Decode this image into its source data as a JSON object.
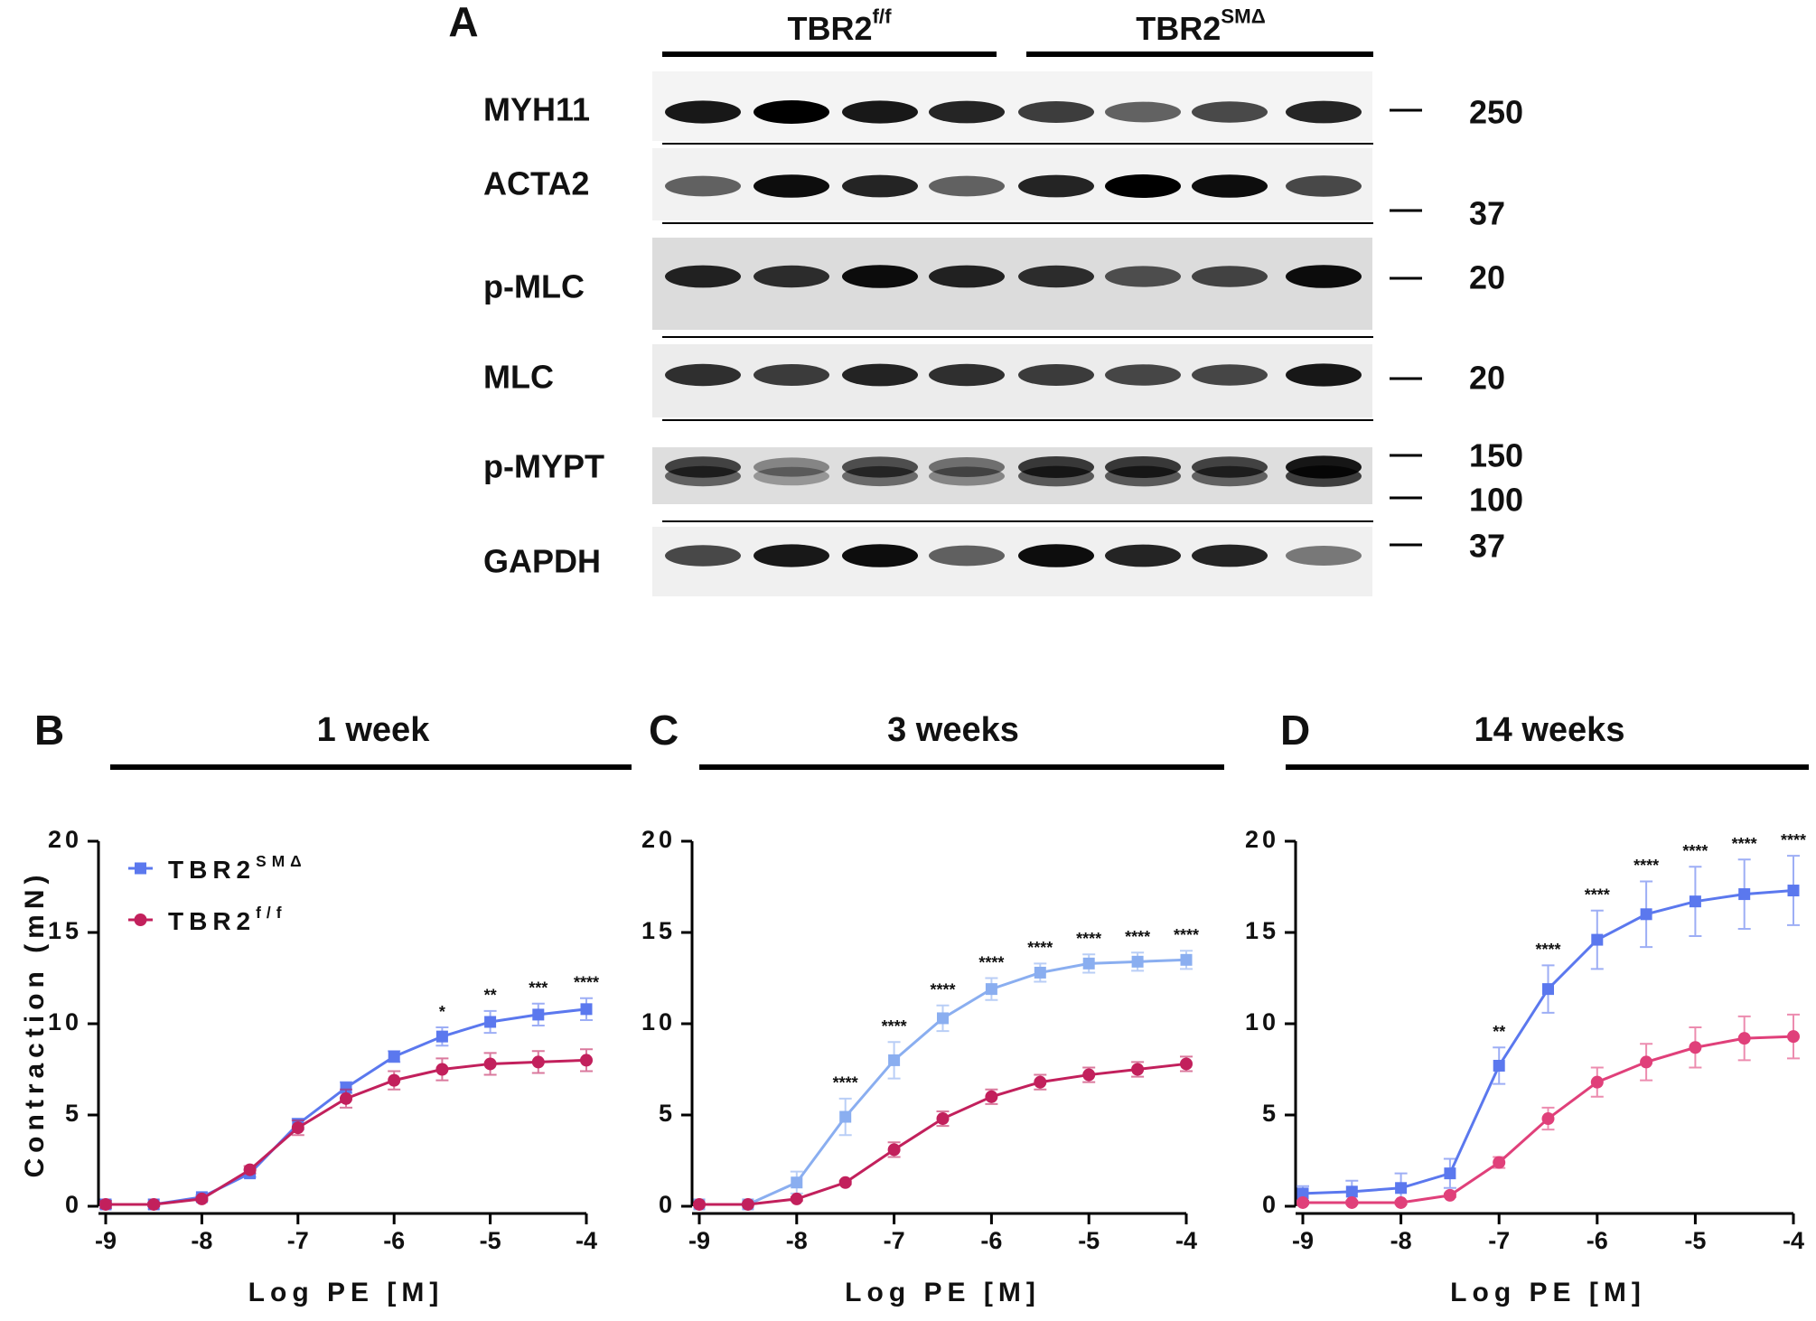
{
  "blot": {
    "panel_label": "A",
    "groups": [
      {
        "name": "TBR2",
        "sup": "f/f"
      },
      {
        "name": "TBR2",
        "sup": "SMΔ"
      }
    ],
    "rows": [
      "MYH11",
      "ACTA2",
      "p-MLC",
      "MLC",
      "p-MYPT",
      "GAPDH"
    ],
    "markers": [
      "250",
      "37",
      "20",
      "20",
      "150",
      "100",
      "37"
    ]
  },
  "chart_data": [
    {
      "type": "line",
      "panel_label": "B",
      "title": "1 week",
      "xlabel": "Log PE [M]",
      "ylabel": "Contraction (mN)",
      "x": [
        -9,
        -8.5,
        -8,
        -7.5,
        -7,
        -6.5,
        -6,
        -5.5,
        -5,
        -4.5,
        -4
      ],
      "xlim": [
        -9,
        -4
      ],
      "xticks": [
        -9,
        -8,
        -7,
        -6,
        -5,
        -4
      ],
      "ylim": [
        0,
        20
      ],
      "yticks": [
        0,
        5,
        10,
        15,
        20
      ],
      "legend": "upper left",
      "series": [
        {
          "name": "TBR2",
          "name_sup": "SMΔ",
          "color": "#5b78ee",
          "marker": "square",
          "values": [
            0.1,
            0.1,
            0.5,
            1.8,
            4.5,
            6.5,
            8.2,
            9.3,
            10.1,
            10.5,
            10.8
          ],
          "errors": [
            0.1,
            0.1,
            0.1,
            0.2,
            0.3,
            0.3,
            0.3,
            0.5,
            0.6,
            0.6,
            0.6
          ]
        },
        {
          "name": "TBR2",
          "name_sup": "f/f",
          "color": "#c2205c",
          "marker": "circle",
          "values": [
            0.1,
            0.1,
            0.4,
            2.0,
            4.3,
            5.9,
            6.9,
            7.5,
            7.8,
            7.9,
            8.0
          ],
          "errors": [
            0.2,
            0.1,
            0.1,
            0.2,
            0.4,
            0.5,
            0.5,
            0.6,
            0.6,
            0.6,
            0.6
          ]
        }
      ],
      "annotations": [
        {
          "x": -5.5,
          "text": "*"
        },
        {
          "x": -5,
          "text": "**"
        },
        {
          "x": -4.5,
          "text": "***"
        },
        {
          "x": -4,
          "text": "****"
        }
      ]
    },
    {
      "type": "line",
      "panel_label": "C",
      "title": "3 weeks",
      "xlabel": "Log PE [M]",
      "x": [
        -9,
        -8.5,
        -8,
        -7.5,
        -7,
        -6.5,
        -6,
        -5.5,
        -5,
        -4.5,
        -4
      ],
      "xlim": [
        -9,
        -4
      ],
      "xticks": [
        -9,
        -8,
        -7,
        -6,
        -5,
        -4
      ],
      "ylim": [
        0,
        20
      ],
      "yticks": [
        0,
        5,
        10,
        15,
        20
      ],
      "series": [
        {
          "color": "#8aaef0",
          "marker": "square",
          "values": [
            0.1,
            0.1,
            1.3,
            4.9,
            8.0,
            10.3,
            11.9,
            12.8,
            13.3,
            13.4,
            13.5
          ],
          "errors": [
            0.0,
            0.0,
            0.6,
            1.0,
            1.0,
            0.7,
            0.6,
            0.5,
            0.5,
            0.5,
            0.5
          ]
        },
        {
          "color": "#c2205c",
          "marker": "circle",
          "values": [
            0.1,
            0.1,
            0.4,
            1.3,
            3.1,
            4.8,
            6.0,
            6.8,
            7.2,
            7.5,
            7.8
          ],
          "errors": [
            0.0,
            0.0,
            0.1,
            0.1,
            0.4,
            0.4,
            0.4,
            0.4,
            0.4,
            0.4,
            0.4
          ]
        }
      ],
      "annotations": [
        {
          "x": -7.5,
          "text": "****"
        },
        {
          "x": -7,
          "text": "****"
        },
        {
          "x": -6.5,
          "text": "****"
        },
        {
          "x": -6,
          "text": "****"
        },
        {
          "x": -5.5,
          "text": "****"
        },
        {
          "x": -5,
          "text": "****"
        },
        {
          "x": -4.5,
          "text": "****"
        },
        {
          "x": -4,
          "text": "****"
        }
      ]
    },
    {
      "type": "line",
      "panel_label": "D",
      "title": "14 weeks",
      "xlabel": "Log PE [M]",
      "x": [
        -9,
        -8.5,
        -8,
        -7.5,
        -7,
        -6.5,
        -6,
        -5.5,
        -5,
        -4.5,
        -4
      ],
      "xlim": [
        -9,
        -4
      ],
      "xticks": [
        -9,
        -8,
        -7,
        -6,
        -5,
        -4
      ],
      "ylim": [
        0,
        20
      ],
      "yticks": [
        0,
        5,
        10,
        15,
        20
      ],
      "series": [
        {
          "color": "#5b78ee",
          "marker": "square",
          "values": [
            0.7,
            0.8,
            1.0,
            1.8,
            7.7,
            11.9,
            14.6,
            16.0,
            16.7,
            17.1,
            17.3
          ],
          "errors": [
            0.4,
            0.6,
            0.8,
            0.8,
            1.0,
            1.3,
            1.6,
            1.8,
            1.9,
            1.9,
            1.9
          ]
        },
        {
          "color": "#e0407a",
          "marker": "circle",
          "values": [
            0.2,
            0.2,
            0.2,
            0.6,
            2.4,
            4.8,
            6.8,
            7.9,
            8.7,
            9.2,
            9.3
          ],
          "errors": [
            0.1,
            0.1,
            0.1,
            0.1,
            0.3,
            0.6,
            0.8,
            1.0,
            1.1,
            1.2,
            1.2
          ]
        }
      ],
      "annotations": [
        {
          "x": -7,
          "text": "**"
        },
        {
          "x": -6.5,
          "text": "****"
        },
        {
          "x": -6,
          "text": "****"
        },
        {
          "x": -5.5,
          "text": "****"
        },
        {
          "x": -5,
          "text": "****"
        },
        {
          "x": -4.5,
          "text": "****"
        },
        {
          "x": -4,
          "text": "****"
        }
      ]
    }
  ]
}
